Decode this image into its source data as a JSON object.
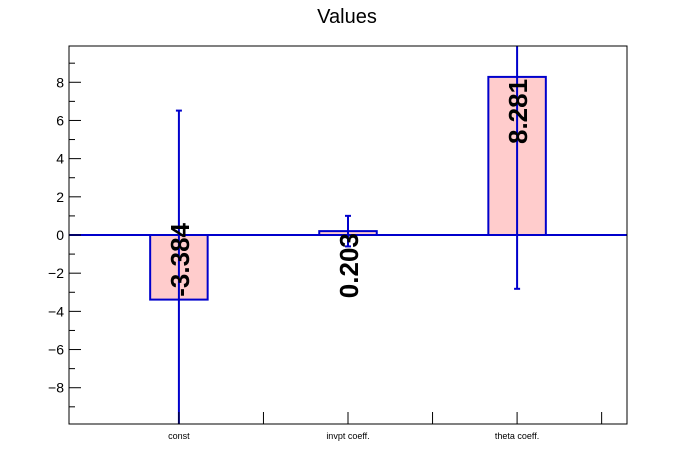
{
  "chart_data": {
    "type": "bar",
    "title": "Values",
    "categories": [
      "const",
      "invpt coeff.",
      "theta coeff."
    ],
    "series": [
      {
        "values": [
          -3.384,
          0.203,
          8.281
        ],
        "errors": [
          9.9,
          0.8,
          11.1
        ],
        "labels": [
          "-3.384",
          "0.203",
          "8.281"
        ]
      }
    ],
    "ylim": [
      -9.9,
      9.9
    ],
    "yticks": [
      -8,
      -6,
      -4,
      -2,
      0,
      2,
      4,
      6,
      8
    ],
    "ytick_labels": [
      "−8",
      "−6",
      "−4",
      "−2",
      "0",
      "2",
      "4",
      "6",
      "8"
    ],
    "grid": false,
    "colors": {
      "bar_fill": "#ffcccc",
      "bar_edge": "#0000cc",
      "axis": "#000000"
    }
  }
}
